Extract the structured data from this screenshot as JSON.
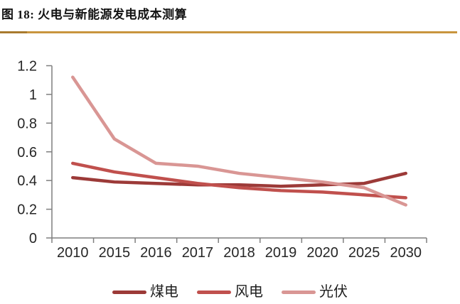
{
  "figure": {
    "title": "图 18: 火电与新能源发电成本测算",
    "divider_color": "#C9953E",
    "divider_tip_color": "#A87A2E"
  },
  "chart_data": {
    "type": "line",
    "title": "火电与新能源发电成本测算",
    "categories": [
      "2010",
      "2015",
      "2016",
      "2017",
      "2018",
      "2019",
      "2020",
      "2025",
      "2030"
    ],
    "series": [
      {
        "name": "煤电",
        "color": "#9C3A38",
        "values": [
          0.42,
          0.39,
          0.38,
          0.37,
          0.37,
          0.36,
          0.37,
          0.38,
          0.45
        ]
      },
      {
        "name": "风电",
        "color": "#C0504D",
        "values": [
          0.52,
          0.46,
          0.42,
          0.38,
          0.35,
          0.33,
          0.32,
          0.3,
          0.28
        ]
      },
      {
        "name": "光伏",
        "color": "#D99694",
        "values": [
          1.12,
          0.69,
          0.52,
          0.5,
          0.45,
          0.42,
          0.39,
          0.35,
          0.23
        ]
      }
    ],
    "xlabel": "",
    "ylabel": "",
    "ylim": [
      0,
      1.2
    ],
    "ytick_step": 0.2,
    "yticks": [
      "0",
      "0.2",
      "0.4",
      "0.6",
      "0.8",
      "1",
      "1.2"
    ],
    "grid": false,
    "legend_position": "bottom",
    "axis_color": "#7F7F7F",
    "label_color": "#262626",
    "line_width": 4.5
  }
}
